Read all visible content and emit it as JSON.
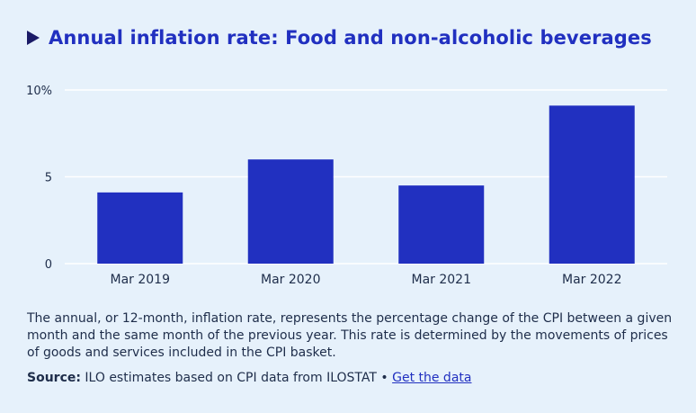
{
  "title": "Annual inflation rate: Food and non-alcoholic beverages",
  "description": "The annual, or 12-month, inflation rate, represents the percentage change of the CPI between a given month and the same month of the previous year. This rate is determined by the movements of prices of goods and services included in the CPI basket.",
  "source": {
    "label": "Source:",
    "text": "ILO estimates based on CPI data from ILOSTAT",
    "separator": "•",
    "link_text": "Get the data"
  },
  "colors": {
    "bar": "#2130c0",
    "title": "#2130c0",
    "background": "#e6f1fb"
  },
  "chart_data": {
    "type": "bar",
    "categories": [
      "Mar 2019",
      "Mar 2020",
      "Mar 2021",
      "Mar 2022"
    ],
    "values": [
      4.1,
      6.0,
      4.5,
      9.1
    ],
    "ylim": [
      0,
      10
    ],
    "yticks": [
      0,
      5,
      10
    ],
    "ytick_labels": [
      "0",
      "5",
      "10%"
    ],
    "xlabel": "",
    "ylabel": "",
    "grid": true
  }
}
